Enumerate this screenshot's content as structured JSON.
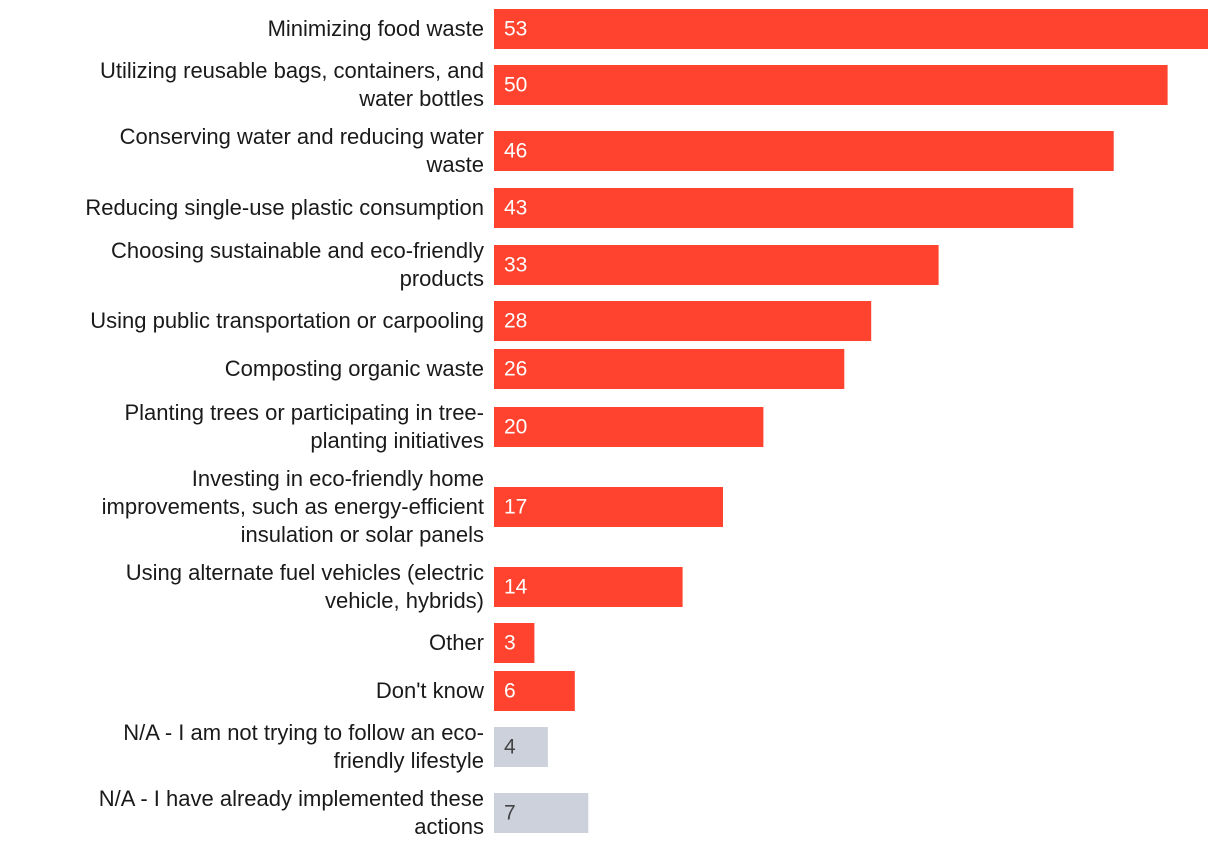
{
  "chart_data": {
    "type": "bar",
    "orientation": "horizontal",
    "title": "",
    "xlabel": "",
    "ylabel": "",
    "xlim": [
      0,
      53
    ],
    "grid": false,
    "legend": "none",
    "colors": {
      "primary": "#ff432e",
      "neutral": "#cdd1dc",
      "primary_text": "#ffffff",
      "neutral_text": "#444444"
    },
    "categories": [
      [
        "Minimizing food waste"
      ],
      [
        "Utilizing reusable bags, containers, and",
        "water bottles"
      ],
      [
        "Conserving water and reducing water",
        "waste"
      ],
      [
        "Reducing single-use plastic consumption"
      ],
      [
        "Choosing sustainable and eco-friendly",
        "products"
      ],
      [
        "Using public transportation or carpooling"
      ],
      [
        "Composting organic waste"
      ],
      [
        "Planting trees or participating in tree-",
        "planting initiatives"
      ],
      [
        "Investing in eco-friendly home",
        "improvements, such as energy-efficient",
        "insulation or solar panels"
      ],
      [
        "Using alternate fuel vehicles (electric",
        "vehicle, hybrids)"
      ],
      [
        "Other"
      ],
      [
        "Don't know"
      ],
      [
        "N/A - I am not trying to follow an eco-",
        "friendly lifestyle"
      ],
      [
        "N/A - I have already implemented these",
        "actions"
      ]
    ],
    "values": [
      53,
      50,
      46,
      43,
      33,
      28,
      26,
      20,
      17,
      14,
      3,
      6,
      4,
      7
    ],
    "bar_group": [
      "primary",
      "primary",
      "primary",
      "primary",
      "primary",
      "primary",
      "primary",
      "primary",
      "primary",
      "primary",
      "primary",
      "primary",
      "neutral",
      "neutral"
    ]
  }
}
